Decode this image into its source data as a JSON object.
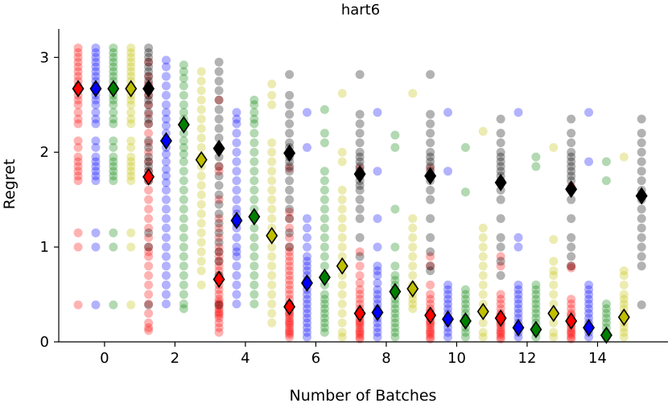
{
  "chart_data": {
    "type": "scatter",
    "title": "hart6",
    "xlabel": "Number of Batches",
    "ylabel": "Regret",
    "xlim": [
      -1.3,
      16.0
    ],
    "ylim": [
      0,
      3.3
    ],
    "xticks": [
      0,
      2,
      4,
      6,
      8,
      10,
      12,
      14
    ],
    "yticks": [
      0,
      1,
      2,
      3
    ],
    "xtick_labels": [
      "0",
      "2",
      "4",
      "6",
      "8",
      "10",
      "12",
      "14"
    ],
    "ytick_labels": [
      "0",
      "1",
      "2",
      "3"
    ],
    "legend": "none",
    "grid": false,
    "series": [
      {
        "color": "#ff0000",
        "offset": -0.75,
        "batches": [
          0,
          2,
          4,
          6,
          8,
          10,
          12,
          14
        ],
        "means": [
          2.67,
          1.74,
          0.66,
          0.37,
          0.3,
          0.28,
          0.25,
          0.22
        ],
        "points": [
          [
            3.1,
            3.05,
            3.0,
            2.95,
            2.9,
            2.85,
            2.8,
            2.75,
            2.7,
            2.65,
            2.6,
            2.55,
            2.5,
            2.42,
            2.35,
            2.3,
            2.12,
            2.05,
            1.95,
            1.9,
            1.85,
            1.8,
            1.75,
            1.7,
            1.15,
            1.0,
            0.39
          ],
          [
            2.95,
            2.8,
            2.72,
            2.6,
            2.5,
            2.4,
            2.3,
            2.2,
            2.1,
            2.0,
            1.9,
            1.8,
            1.7,
            1.6,
            1.5,
            1.4,
            1.3,
            1.2,
            1.1,
            1.0,
            0.95,
            0.9,
            0.8,
            0.7,
            0.6,
            0.5,
            0.4,
            0.3,
            0.2,
            0.15,
            0.12
          ],
          [
            2.55,
            1.85,
            1.8,
            1.5,
            1.3,
            1.2,
            1.1,
            1.0,
            0.95,
            0.9,
            0.85,
            0.8,
            0.75,
            0.7,
            0.65,
            0.6,
            0.55,
            0.5,
            0.45,
            0.42,
            0.4,
            0.38,
            0.35,
            0.32,
            0.3,
            0.28,
            0.25,
            0.2,
            0.15,
            0.1
          ],
          [
            1.83,
            1.37,
            1.3,
            1.2,
            1.1,
            1.0,
            0.95,
            0.9,
            0.85,
            0.8,
            0.75,
            0.7,
            0.65,
            0.6,
            0.55,
            0.5,
            0.45,
            0.4,
            0.38,
            0.35,
            0.32,
            0.3,
            0.28,
            0.25,
            0.22,
            0.2,
            0.18,
            0.15,
            0.12,
            0.1,
            0.08,
            0.05
          ],
          [
            1.83,
            0.95,
            0.8,
            0.7,
            0.62,
            0.55,
            0.5,
            0.45,
            0.4,
            0.35,
            0.32,
            0.3,
            0.28,
            0.25,
            0.22,
            0.2,
            0.18,
            0.15,
            0.12,
            0.1,
            0.08,
            0.05,
            0.03
          ],
          [
            1.83,
            0.9,
            0.8,
            0.6,
            0.5,
            0.45,
            0.4,
            0.35,
            0.32,
            0.3,
            0.28,
            0.25,
            0.22,
            0.2,
            0.18,
            0.15,
            0.12,
            0.1,
            0.08,
            0.05,
            0.03
          ],
          [
            0.9,
            0.8,
            0.5,
            0.45,
            0.4,
            0.35,
            0.3,
            0.28,
            0.25,
            0.22,
            0.2,
            0.18,
            0.15,
            0.12,
            0.1,
            0.08,
            0.05,
            0.03
          ],
          [
            1.64,
            0.8,
            0.78,
            0.45,
            0.4,
            0.35,
            0.3,
            0.28,
            0.25,
            0.22,
            0.2,
            0.18,
            0.15,
            0.12,
            0.1,
            0.08,
            0.05,
            0.03
          ]
        ]
      },
      {
        "color": "#0000ff",
        "offset": -0.25,
        "batches": [
          0,
          2,
          4,
          6,
          8,
          10,
          12,
          14
        ],
        "means": [
          2.67,
          2.12,
          1.28,
          0.62,
          0.31,
          0.24,
          0.15,
          0.15
        ],
        "points": [
          [
            3.1,
            3.05,
            3.0,
            2.95,
            2.9,
            2.85,
            2.8,
            2.75,
            2.7,
            2.65,
            2.6,
            2.55,
            2.5,
            2.42,
            2.35,
            2.3,
            2.12,
            2.05,
            1.95,
            1.9,
            1.85,
            1.8,
            1.75,
            1.7,
            1.15,
            1.0,
            0.39
          ],
          [
            2.97,
            2.9,
            2.8,
            2.7,
            2.6,
            2.5,
            2.42,
            2.35,
            2.28,
            2.2,
            2.12,
            2.05,
            1.98,
            1.9,
            1.82,
            1.75,
            1.68,
            1.6,
            1.5,
            1.4,
            1.3,
            1.2,
            1.1,
            1.0,
            0.9,
            0.8,
            0.7,
            0.6,
            0.5,
            0.4
          ],
          [
            2.42,
            2.35,
            2.3,
            2.2,
            2.1,
            2.0,
            1.9,
            1.8,
            1.7,
            1.6,
            1.5,
            1.4,
            1.35,
            1.3,
            1.25,
            1.2,
            1.1,
            1.0,
            0.95,
            0.9,
            0.8,
            0.7,
            0.6,
            0.5,
            0.4
          ],
          [
            2.42,
            2.05,
            1.3,
            1.2,
            1.1,
            1.0,
            0.9,
            0.85,
            0.8,
            0.75,
            0.7,
            0.65,
            0.6,
            0.55,
            0.5,
            0.45,
            0.4,
            0.35,
            0.3,
            0.25,
            0.2,
            0.15,
            0.1,
            0.05
          ],
          [
            2.42,
            1.8,
            1.3,
            1.0,
            0.8,
            0.75,
            0.7,
            0.62,
            0.55,
            0.5,
            0.45,
            0.4,
            0.35,
            0.3,
            0.25,
            0.2,
            0.15,
            0.1,
            0.05
          ],
          [
            2.42,
            1.8,
            0.6,
            0.55,
            0.5,
            0.45,
            0.4,
            0.35,
            0.3,
            0.25,
            0.2,
            0.15,
            0.1,
            0.05
          ],
          [
            2.42,
            1.1,
            1.0,
            0.6,
            0.55,
            0.5,
            0.45,
            0.4,
            0.35,
            0.3,
            0.25,
            0.2,
            0.15,
            0.1,
            0.05
          ],
          [
            2.42,
            1.9,
            0.6,
            0.55,
            0.5,
            0.45,
            0.4,
            0.35,
            0.3,
            0.25,
            0.2,
            0.15,
            0.1,
            0.05
          ]
        ]
      },
      {
        "color": "#008000",
        "offset": 0.25,
        "batches": [
          0,
          2,
          4,
          6,
          8,
          10,
          12,
          14
        ],
        "means": [
          2.67,
          2.29,
          1.32,
          0.68,
          0.53,
          0.22,
          0.13,
          0.07
        ],
        "points": [
          [
            3.1,
            3.05,
            3.0,
            2.95,
            2.9,
            2.85,
            2.8,
            2.75,
            2.7,
            2.65,
            2.6,
            2.55,
            2.5,
            2.42,
            2.35,
            2.3,
            2.12,
            2.05,
            1.95,
            1.9,
            1.85,
            1.8,
            1.75,
            1.7,
            1.15,
            1.0,
            0.39
          ],
          [
            2.92,
            2.85,
            2.78,
            2.7,
            2.6,
            2.5,
            2.42,
            2.35,
            2.28,
            2.2,
            2.12,
            2.05,
            1.98,
            1.9,
            1.8,
            1.7,
            1.6,
            1.5,
            1.4,
            1.3,
            1.2,
            1.1,
            1.0,
            0.9,
            0.8,
            0.7,
            0.6,
            0.5,
            0.4,
            0.35
          ],
          [
            2.55,
            2.5,
            2.42,
            2.35,
            2.3,
            2.2,
            2.1,
            2.0,
            1.9,
            1.8,
            1.7,
            1.6,
            1.5,
            1.4,
            1.3,
            1.2,
            1.1,
            1.0,
            0.9,
            0.8,
            0.7,
            0.6,
            0.5,
            0.4
          ],
          [
            2.45,
            2.2,
            2.1,
            1.8,
            1.7,
            1.6,
            1.5,
            1.4,
            1.3,
            1.2,
            1.1,
            1.0,
            0.9,
            0.8,
            0.7,
            0.6,
            0.5,
            0.45,
            0.4,
            0.35,
            0.3,
            0.25,
            0.2,
            0.15,
            0.1
          ],
          [
            2.18,
            2.05,
            1.4,
            1.0,
            0.8,
            0.7,
            0.65,
            0.6,
            0.55,
            0.5,
            0.45,
            0.4,
            0.35,
            0.3,
            0.25,
            0.2,
            0.15,
            0.1,
            0.05
          ],
          [
            2.05,
            1.58,
            0.55,
            0.5,
            0.45,
            0.4,
            0.35,
            0.3,
            0.25,
            0.2,
            0.15,
            0.1,
            0.05
          ],
          [
            1.95,
            1.85,
            0.6,
            0.55,
            0.5,
            0.45,
            0.4,
            0.35,
            0.3,
            0.25,
            0.2,
            0.15,
            0.1,
            0.05
          ],
          [
            1.9,
            1.7,
            0.4,
            0.35,
            0.3,
            0.25,
            0.2,
            0.15,
            0.1,
            0.05
          ]
        ]
      },
      {
        "color": "#bfbf00",
        "offset": 0.75,
        "batches": [
          0,
          2,
          4,
          6,
          8,
          10,
          12,
          14
        ],
        "means": [
          2.67,
          1.92,
          1.12,
          0.8,
          0.56,
          0.32,
          0.3,
          0.26
        ],
        "points": [
          [
            3.1,
            3.05,
            3.0,
            2.95,
            2.9,
            2.85,
            2.8,
            2.75,
            2.7,
            2.65,
            2.6,
            2.55,
            2.5,
            2.42,
            2.35,
            2.3,
            2.12,
            2.05,
            1.95,
            1.9,
            1.85,
            1.8,
            1.75,
            1.7,
            1.15,
            1.0,
            0.39
          ],
          [
            2.85,
            2.75,
            2.65,
            2.55,
            2.45,
            2.35,
            2.25,
            2.15,
            2.05,
            1.95,
            1.85,
            1.75,
            1.65,
            1.55,
            1.45,
            1.35,
            1.25,
            1.15,
            1.05,
            0.95,
            0.85,
            0.75,
            0.6
          ],
          [
            2.72,
            2.6,
            2.5,
            2.1,
            2.0,
            1.9,
            1.8,
            1.7,
            1.6,
            1.5,
            1.4,
            1.3,
            1.2,
            1.1,
            1.0,
            0.9,
            0.8,
            0.7,
            0.6,
            0.5,
            0.4,
            0.3,
            0.2
          ],
          [
            2.62,
            2.0,
            1.9,
            1.6,
            1.5,
            1.4,
            1.3,
            1.2,
            1.1,
            1.0,
            0.9,
            0.8,
            0.7,
            0.6,
            0.5,
            0.4,
            0.3,
            0.2,
            0.1,
            0.05
          ],
          [
            2.62,
            1.3,
            1.2,
            1.1,
            1.0,
            0.9,
            0.8,
            0.7,
            0.6,
            0.5,
            0.45,
            0.4,
            0.35
          ],
          [
            2.22,
            1.2,
            1.1,
            1.0,
            0.9,
            0.8,
            0.7,
            0.6,
            0.5,
            0.4,
            0.3,
            0.2,
            0.1,
            0.05
          ],
          [
            2.05,
            1.08,
            0.85,
            0.75,
            0.7,
            0.6,
            0.5,
            0.4,
            0.3,
            0.2,
            0.1,
            0.05
          ],
          [
            1.95,
            0.75,
            0.7,
            0.6,
            0.5,
            0.45,
            0.4,
            0.35,
            0.3,
            0.25,
            0.2,
            0.15,
            0.1,
            0.05
          ]
        ]
      },
      {
        "color": "#000000",
        "offset": 1.25,
        "batches": [
          0,
          2,
          4,
          6,
          8,
          10,
          12,
          14
        ],
        "means": [
          2.67,
          2.04,
          1.99,
          1.77,
          1.75,
          1.68,
          1.61,
          1.54
        ],
        "points": [
          [
            3.1,
            3.05,
            3.0,
            2.95,
            2.9,
            2.85,
            2.8,
            2.75,
            2.7,
            2.65,
            2.6,
            2.55,
            2.5,
            2.42,
            2.35,
            2.3,
            2.12,
            2.05,
            1.95,
            1.9,
            1.85,
            1.8,
            1.75,
            1.7,
            1.15,
            1.0,
            0.39
          ],
          [
            2.95,
            2.85,
            2.75,
            2.65,
            2.55,
            2.45,
            2.35,
            2.25,
            2.15,
            2.05,
            1.95,
            1.85,
            1.75,
            1.65,
            1.55,
            1.45,
            1.35,
            1.25,
            1.15,
            1.05,
            0.95,
            0.85,
            0.7,
            0.39
          ],
          [
            2.82,
            2.6,
            2.5,
            2.4,
            2.3,
            2.2,
            2.1,
            2.05,
            2.0,
            1.95,
            1.9,
            1.85,
            1.8,
            1.7,
            1.6,
            1.5,
            1.4,
            1.3,
            1.15,
            1.0,
            0.39
          ],
          [
            2.82,
            2.4,
            2.3,
            2.2,
            2.1,
            2.0,
            1.95,
            1.9,
            1.85,
            1.8,
            1.75,
            1.7,
            1.65,
            1.6,
            1.5,
            1.4,
            1.3,
            1.1,
            0.9
          ],
          [
            2.82,
            2.4,
            2.3,
            2.2,
            2.1,
            2.0,
            1.95,
            1.9,
            1.85,
            1.8,
            1.75,
            1.7,
            1.6,
            1.5,
            1.3,
            1.1,
            0.95,
            0.8,
            0.75
          ],
          [
            2.35,
            2.2,
            2.1,
            2.0,
            1.95,
            1.9,
            1.85,
            1.8,
            1.75,
            1.7,
            1.6,
            1.5,
            1.3,
            1.1,
            1.0,
            0.85,
            0.7
          ],
          [
            2.35,
            2.2,
            2.1,
            2.0,
            1.95,
            1.9,
            1.85,
            1.8,
            1.75,
            1.7,
            1.6,
            1.5,
            1.3,
            1.1,
            1.0,
            0.9,
            0.8
          ],
          [
            2.35,
            2.2,
            2.1,
            2.0,
            1.9,
            1.8,
            1.7,
            1.6,
            1.5,
            1.4,
            1.3,
            1.2,
            1.1,
            1.0,
            0.9,
            0.8,
            0.39
          ]
        ]
      }
    ]
  }
}
